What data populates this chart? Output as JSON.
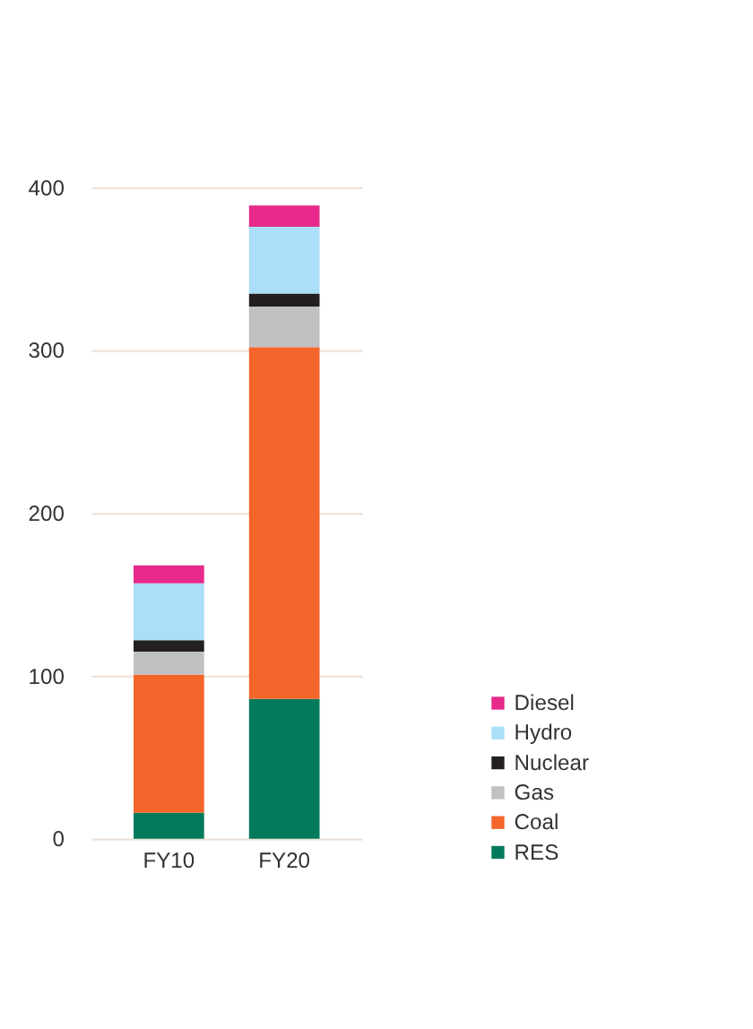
{
  "chart_data": {
    "type": "bar",
    "stacked": true,
    "categories": [
      "FY10",
      "FY20"
    ],
    "series": [
      {
        "name": "RES",
        "color": "#037a5c",
        "values": [
          16,
          86
        ]
      },
      {
        "name": "Coal",
        "color": "#f3652a",
        "values": [
          85,
          216
        ]
      },
      {
        "name": "Gas",
        "color": "#c0c1c3",
        "values": [
          14,
          25
        ]
      },
      {
        "name": "Nuclear",
        "color": "#231f20",
        "values": [
          7,
          8
        ]
      },
      {
        "name": "Hydro",
        "color": "#abdff9",
        "values": [
          35,
          41
        ]
      },
      {
        "name": "Diesel",
        "color": "#e6298a",
        "values": [
          11,
          13
        ]
      }
    ],
    "ylim": [
      0,
      400
    ],
    "yticks": [
      0,
      100,
      200,
      300,
      400
    ],
    "grid": "y",
    "legend": "bottom right"
  }
}
